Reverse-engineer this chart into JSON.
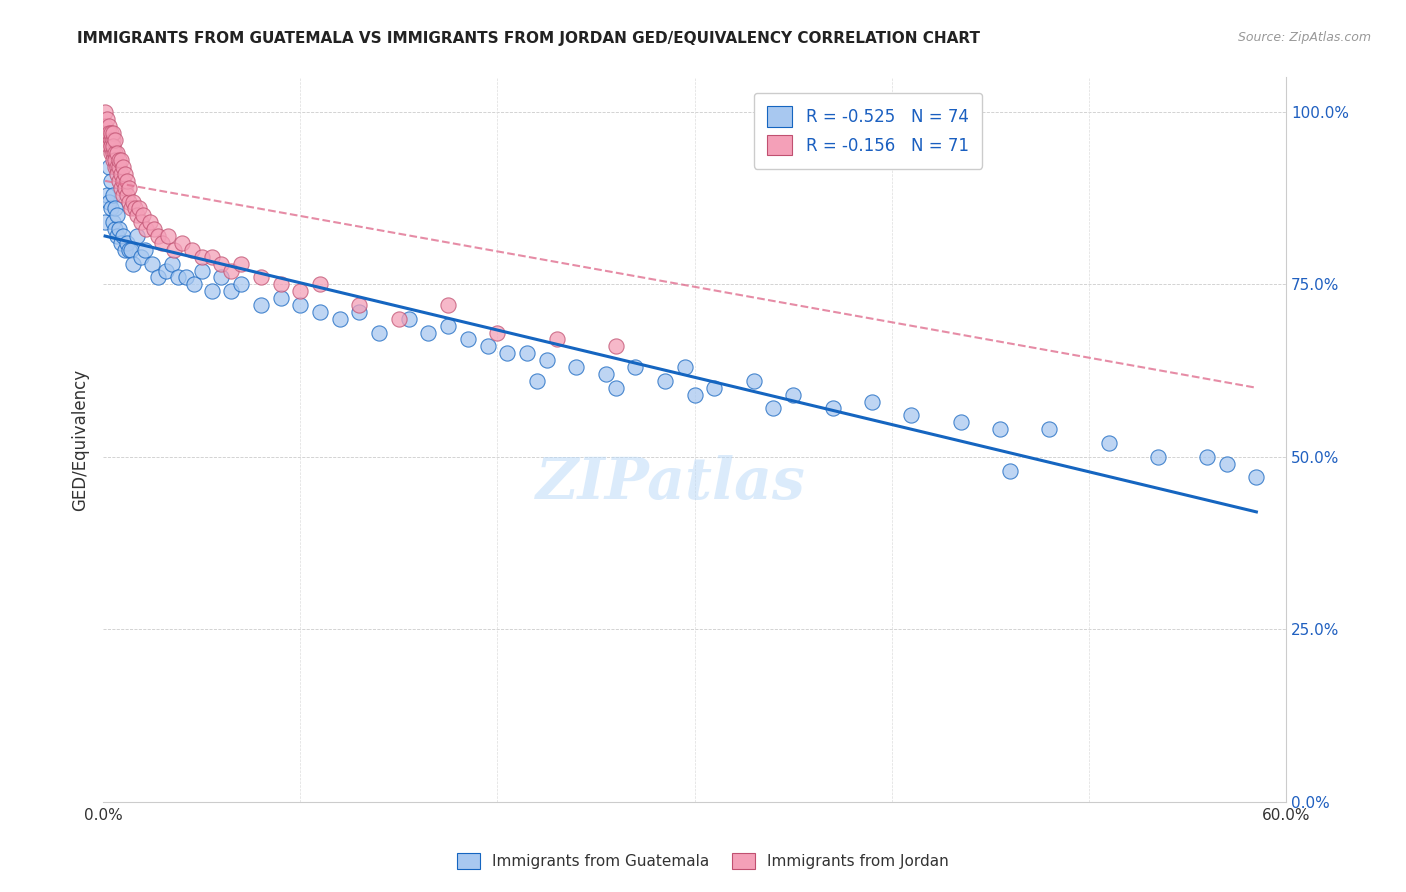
{
  "title": "IMMIGRANTS FROM GUATEMALA VS IMMIGRANTS FROM JORDAN GED/EQUIVALENCY CORRELATION CHART",
  "source": "Source: ZipAtlas.com",
  "xlabel_ticks": [
    "0.0%",
    "",
    "",
    "",
    "",
    "",
    "60.0%"
  ],
  "ylabel_ticks": [
    "0.0%",
    "25.0%",
    "50.0%",
    "75.0%",
    "100.0%"
  ],
  "xlim": [
    0.0,
    0.6
  ],
  "ylim": [
    0.0,
    1.05
  ],
  "watermark": "ZIPatlas",
  "legend_r1": "-0.525",
  "legend_n1": "74",
  "legend_r2": "-0.156",
  "legend_n2": "71",
  "color_guatemala": "#a8c8f0",
  "color_jordan": "#f4a0b8",
  "line_color_guatemala": "#1565c0",
  "line_color_jordan": "#e07090",
  "ylabel": "GED/Equivalency",
  "guatemala_x": [
    0.001,
    0.002,
    0.003,
    0.003,
    0.004,
    0.004,
    0.005,
    0.005,
    0.006,
    0.006,
    0.007,
    0.007,
    0.008,
    0.009,
    0.01,
    0.011,
    0.012,
    0.013,
    0.014,
    0.015,
    0.017,
    0.019,
    0.021,
    0.025,
    0.028,
    0.032,
    0.035,
    0.038,
    0.042,
    0.046,
    0.05,
    0.055,
    0.06,
    0.065,
    0.07,
    0.08,
    0.09,
    0.1,
    0.11,
    0.12,
    0.13,
    0.14,
    0.155,
    0.165,
    0.175,
    0.185,
    0.195,
    0.205,
    0.215,
    0.225,
    0.24,
    0.255,
    0.27,
    0.285,
    0.295,
    0.31,
    0.33,
    0.35,
    0.37,
    0.39,
    0.41,
    0.435,
    0.455,
    0.48,
    0.51,
    0.535,
    0.56,
    0.57,
    0.585,
    0.34,
    0.3,
    0.26,
    0.22,
    0.46
  ],
  "guatemala_y": [
    0.84,
    0.88,
    0.87,
    0.92,
    0.86,
    0.9,
    0.84,
    0.88,
    0.83,
    0.86,
    0.82,
    0.85,
    0.83,
    0.81,
    0.82,
    0.8,
    0.81,
    0.8,
    0.8,
    0.78,
    0.82,
    0.79,
    0.8,
    0.78,
    0.76,
    0.77,
    0.78,
    0.76,
    0.76,
    0.75,
    0.77,
    0.74,
    0.76,
    0.74,
    0.75,
    0.72,
    0.73,
    0.72,
    0.71,
    0.7,
    0.71,
    0.68,
    0.7,
    0.68,
    0.69,
    0.67,
    0.66,
    0.65,
    0.65,
    0.64,
    0.63,
    0.62,
    0.63,
    0.61,
    0.63,
    0.6,
    0.61,
    0.59,
    0.57,
    0.58,
    0.56,
    0.55,
    0.54,
    0.54,
    0.52,
    0.5,
    0.5,
    0.49,
    0.47,
    0.57,
    0.59,
    0.6,
    0.61,
    0.48
  ],
  "jordan_x": [
    0.001,
    0.001,
    0.002,
    0.002,
    0.002,
    0.003,
    0.003,
    0.003,
    0.003,
    0.004,
    0.004,
    0.004,
    0.004,
    0.005,
    0.005,
    0.005,
    0.005,
    0.005,
    0.006,
    0.006,
    0.006,
    0.006,
    0.007,
    0.007,
    0.007,
    0.008,
    0.008,
    0.008,
    0.009,
    0.009,
    0.009,
    0.01,
    0.01,
    0.01,
    0.011,
    0.011,
    0.012,
    0.012,
    0.013,
    0.013,
    0.014,
    0.015,
    0.016,
    0.017,
    0.018,
    0.019,
    0.02,
    0.022,
    0.024,
    0.026,
    0.028,
    0.03,
    0.033,
    0.036,
    0.04,
    0.045,
    0.05,
    0.055,
    0.06,
    0.065,
    0.07,
    0.08,
    0.09,
    0.1,
    0.11,
    0.13,
    0.15,
    0.175,
    0.2,
    0.23,
    0.26
  ],
  "jordan_y": [
    1.0,
    0.98,
    0.97,
    0.99,
    0.96,
    0.98,
    0.96,
    0.97,
    0.95,
    0.96,
    0.97,
    0.94,
    0.95,
    0.96,
    0.94,
    0.97,
    0.93,
    0.95,
    0.94,
    0.96,
    0.92,
    0.93,
    0.92,
    0.94,
    0.91,
    0.92,
    0.93,
    0.9,
    0.91,
    0.93,
    0.89,
    0.9,
    0.92,
    0.88,
    0.89,
    0.91,
    0.88,
    0.9,
    0.87,
    0.89,
    0.86,
    0.87,
    0.86,
    0.85,
    0.86,
    0.84,
    0.85,
    0.83,
    0.84,
    0.83,
    0.82,
    0.81,
    0.82,
    0.8,
    0.81,
    0.8,
    0.79,
    0.79,
    0.78,
    0.77,
    0.78,
    0.76,
    0.75,
    0.74,
    0.75,
    0.72,
    0.7,
    0.72,
    0.68,
    0.67,
    0.66
  ],
  "guat_trend_x": [
    0.001,
    0.585
  ],
  "guat_trend_y": [
    0.82,
    0.42
  ],
  "jord_trend_x": [
    0.001,
    0.585
  ],
  "jord_trend_y": [
    0.9,
    0.6
  ]
}
